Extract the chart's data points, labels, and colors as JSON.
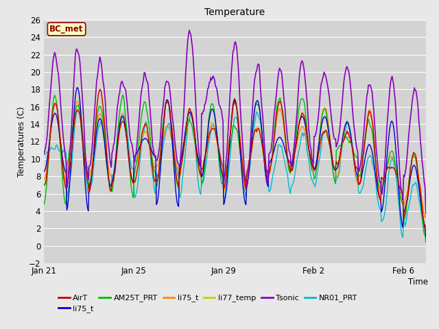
{
  "title": "Temperature",
  "xlabel": "Time",
  "ylabel": "Temperatures (C)",
  "ylim": [
    -2,
    26
  ],
  "xlim": [
    0,
    17
  ],
  "fig_bg_color": "#e8e8e8",
  "plot_bg_color": "#d3d3d3",
  "grid_color": "#ffffff",
  "annotation_label": "BC_met",
  "annotation_bg": "#ffffc0",
  "annotation_border": "#8b0000",
  "xtick_labels": [
    "Jan 21",
    "Jan 25",
    "Jan 29",
    "Feb 2",
    "Feb 6"
  ],
  "xtick_positions": [
    0,
    4,
    8,
    12,
    16
  ],
  "series": {
    "AirT": {
      "color": "#cc0000",
      "lw": 1.0
    },
    "li75_t_b": {
      "color": "#0000cc",
      "lw": 1.0
    },
    "AM25T_PRT": {
      "color": "#00bb00",
      "lw": 1.0
    },
    "li75_t": {
      "color": "#ff8800",
      "lw": 1.0
    },
    "li77_temp": {
      "color": "#cccc00",
      "lw": 1.0
    },
    "Tsonic": {
      "color": "#8800bb",
      "lw": 1.2
    },
    "NR01_PRT": {
      "color": "#00bbcc",
      "lw": 1.0
    }
  },
  "legend": [
    {
      "label": "AirT",
      "color": "#cc0000"
    },
    {
      "label": "li75_t",
      "color": "#0000cc"
    },
    {
      "label": "AM25T_PRT",
      "color": "#00bb00"
    },
    {
      "label": "li75_t",
      "color": "#ff8800"
    },
    {
      "label": "li77_temp",
      "color": "#cccc00"
    },
    {
      "label": "Tsonic",
      "color": "#8800bb"
    },
    {
      "label": "NR01_PRT",
      "color": "#00bbcc"
    }
  ]
}
